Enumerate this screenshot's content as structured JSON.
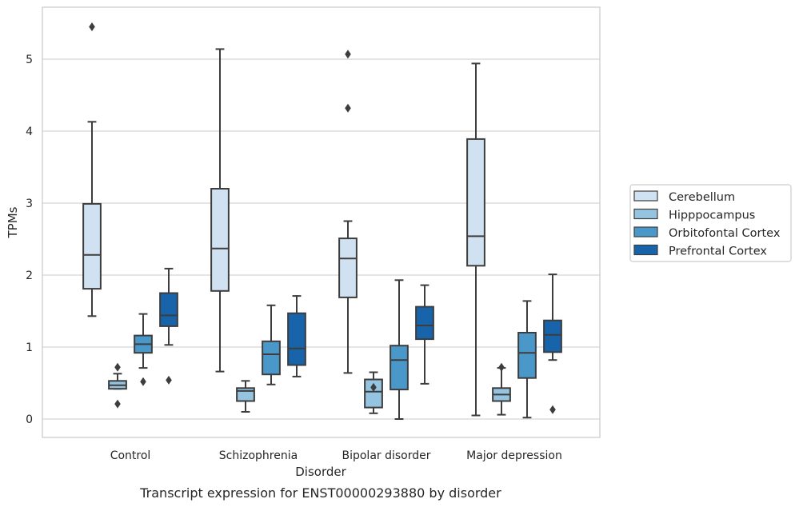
{
  "chart_data": {
    "type": "box",
    "caption": "Transcript expression for ENST00000293880 by disorder",
    "xlabel": "Disorder",
    "ylabel": "TPMs",
    "ylim": [
      -0.25,
      5.75
    ],
    "yticks": [
      0,
      1,
      2,
      3,
      4,
      5
    ],
    "grid": "horizontal",
    "legend_position": "right",
    "categories": [
      "Control",
      "Schizophrenia",
      "Bipolar disorder",
      "Major depression"
    ],
    "series": [
      {
        "name": "Cerebellum",
        "color": "#d0e1f2",
        "boxes": [
          {
            "whislo": 1.43,
            "q1": 1.81,
            "med": 2.28,
            "q3": 2.99,
            "whishi": 4.13,
            "fliers": [
              5.45
            ]
          },
          {
            "whislo": 0.66,
            "q1": 1.78,
            "med": 2.37,
            "q3": 3.2,
            "whishi": 5.14,
            "fliers": []
          },
          {
            "whislo": 0.64,
            "q1": 1.69,
            "med": 2.23,
            "q3": 2.51,
            "whishi": 2.75,
            "fliers": [
              4.32,
              5.07
            ]
          },
          {
            "whislo": 0.05,
            "q1": 2.13,
            "med": 2.54,
            "q3": 3.89,
            "whishi": 4.94,
            "fliers": []
          }
        ]
      },
      {
        "name": "Hipppocampus",
        "color": "#94c4df",
        "boxes": [
          {
            "whislo": 0.42,
            "q1": 0.42,
            "med": 0.47,
            "q3": 0.53,
            "whishi": 0.63,
            "fliers": [
              0.21,
              0.72
            ]
          },
          {
            "whislo": 0.1,
            "q1": 0.25,
            "med": 0.39,
            "q3": 0.43,
            "whishi": 0.53,
            "fliers": []
          },
          {
            "whislo": 0.08,
            "q1": 0.16,
            "med": 0.38,
            "q3": 0.55,
            "whishi": 0.65,
            "fliers": [
              0.44
            ]
          },
          {
            "whislo": 0.06,
            "q1": 0.25,
            "med": 0.34,
            "q3": 0.43,
            "whishi": 0.71,
            "fliers": [
              0.72
            ]
          }
        ]
      },
      {
        "name": "Orbitofontal Cortex",
        "color": "#4a98c9",
        "boxes": [
          {
            "whislo": 0.71,
            "q1": 0.92,
            "med": 1.04,
            "q3": 1.16,
            "whishi": 1.46,
            "fliers": [
              0.52
            ]
          },
          {
            "whislo": 0.48,
            "q1": 0.62,
            "med": 0.9,
            "q3": 1.08,
            "whishi": 1.58,
            "fliers": []
          },
          {
            "whislo": 0.0,
            "q1": 0.41,
            "med": 0.82,
            "q3": 1.02,
            "whishi": 1.93,
            "fliers": []
          },
          {
            "whislo": 0.02,
            "q1": 0.57,
            "med": 0.92,
            "q3": 1.2,
            "whishi": 1.64,
            "fliers": []
          }
        ]
      },
      {
        "name": "Prefrontal Cortex",
        "color": "#1764ab",
        "boxes": [
          {
            "whislo": 1.03,
            "q1": 1.29,
            "med": 1.44,
            "q3": 1.75,
            "whishi": 2.09,
            "fliers": [
              0.54
            ]
          },
          {
            "whislo": 0.59,
            "q1": 0.75,
            "med": 0.98,
            "q3": 1.47,
            "whishi": 1.71,
            "fliers": []
          },
          {
            "whislo": 0.49,
            "q1": 1.11,
            "med": 1.3,
            "q3": 1.56,
            "whishi": 1.86,
            "fliers": []
          },
          {
            "whislo": 0.82,
            "q1": 0.93,
            "med": 1.17,
            "q3": 1.37,
            "whishi": 2.01,
            "fliers": [
              0.13
            ]
          }
        ]
      }
    ]
  }
}
